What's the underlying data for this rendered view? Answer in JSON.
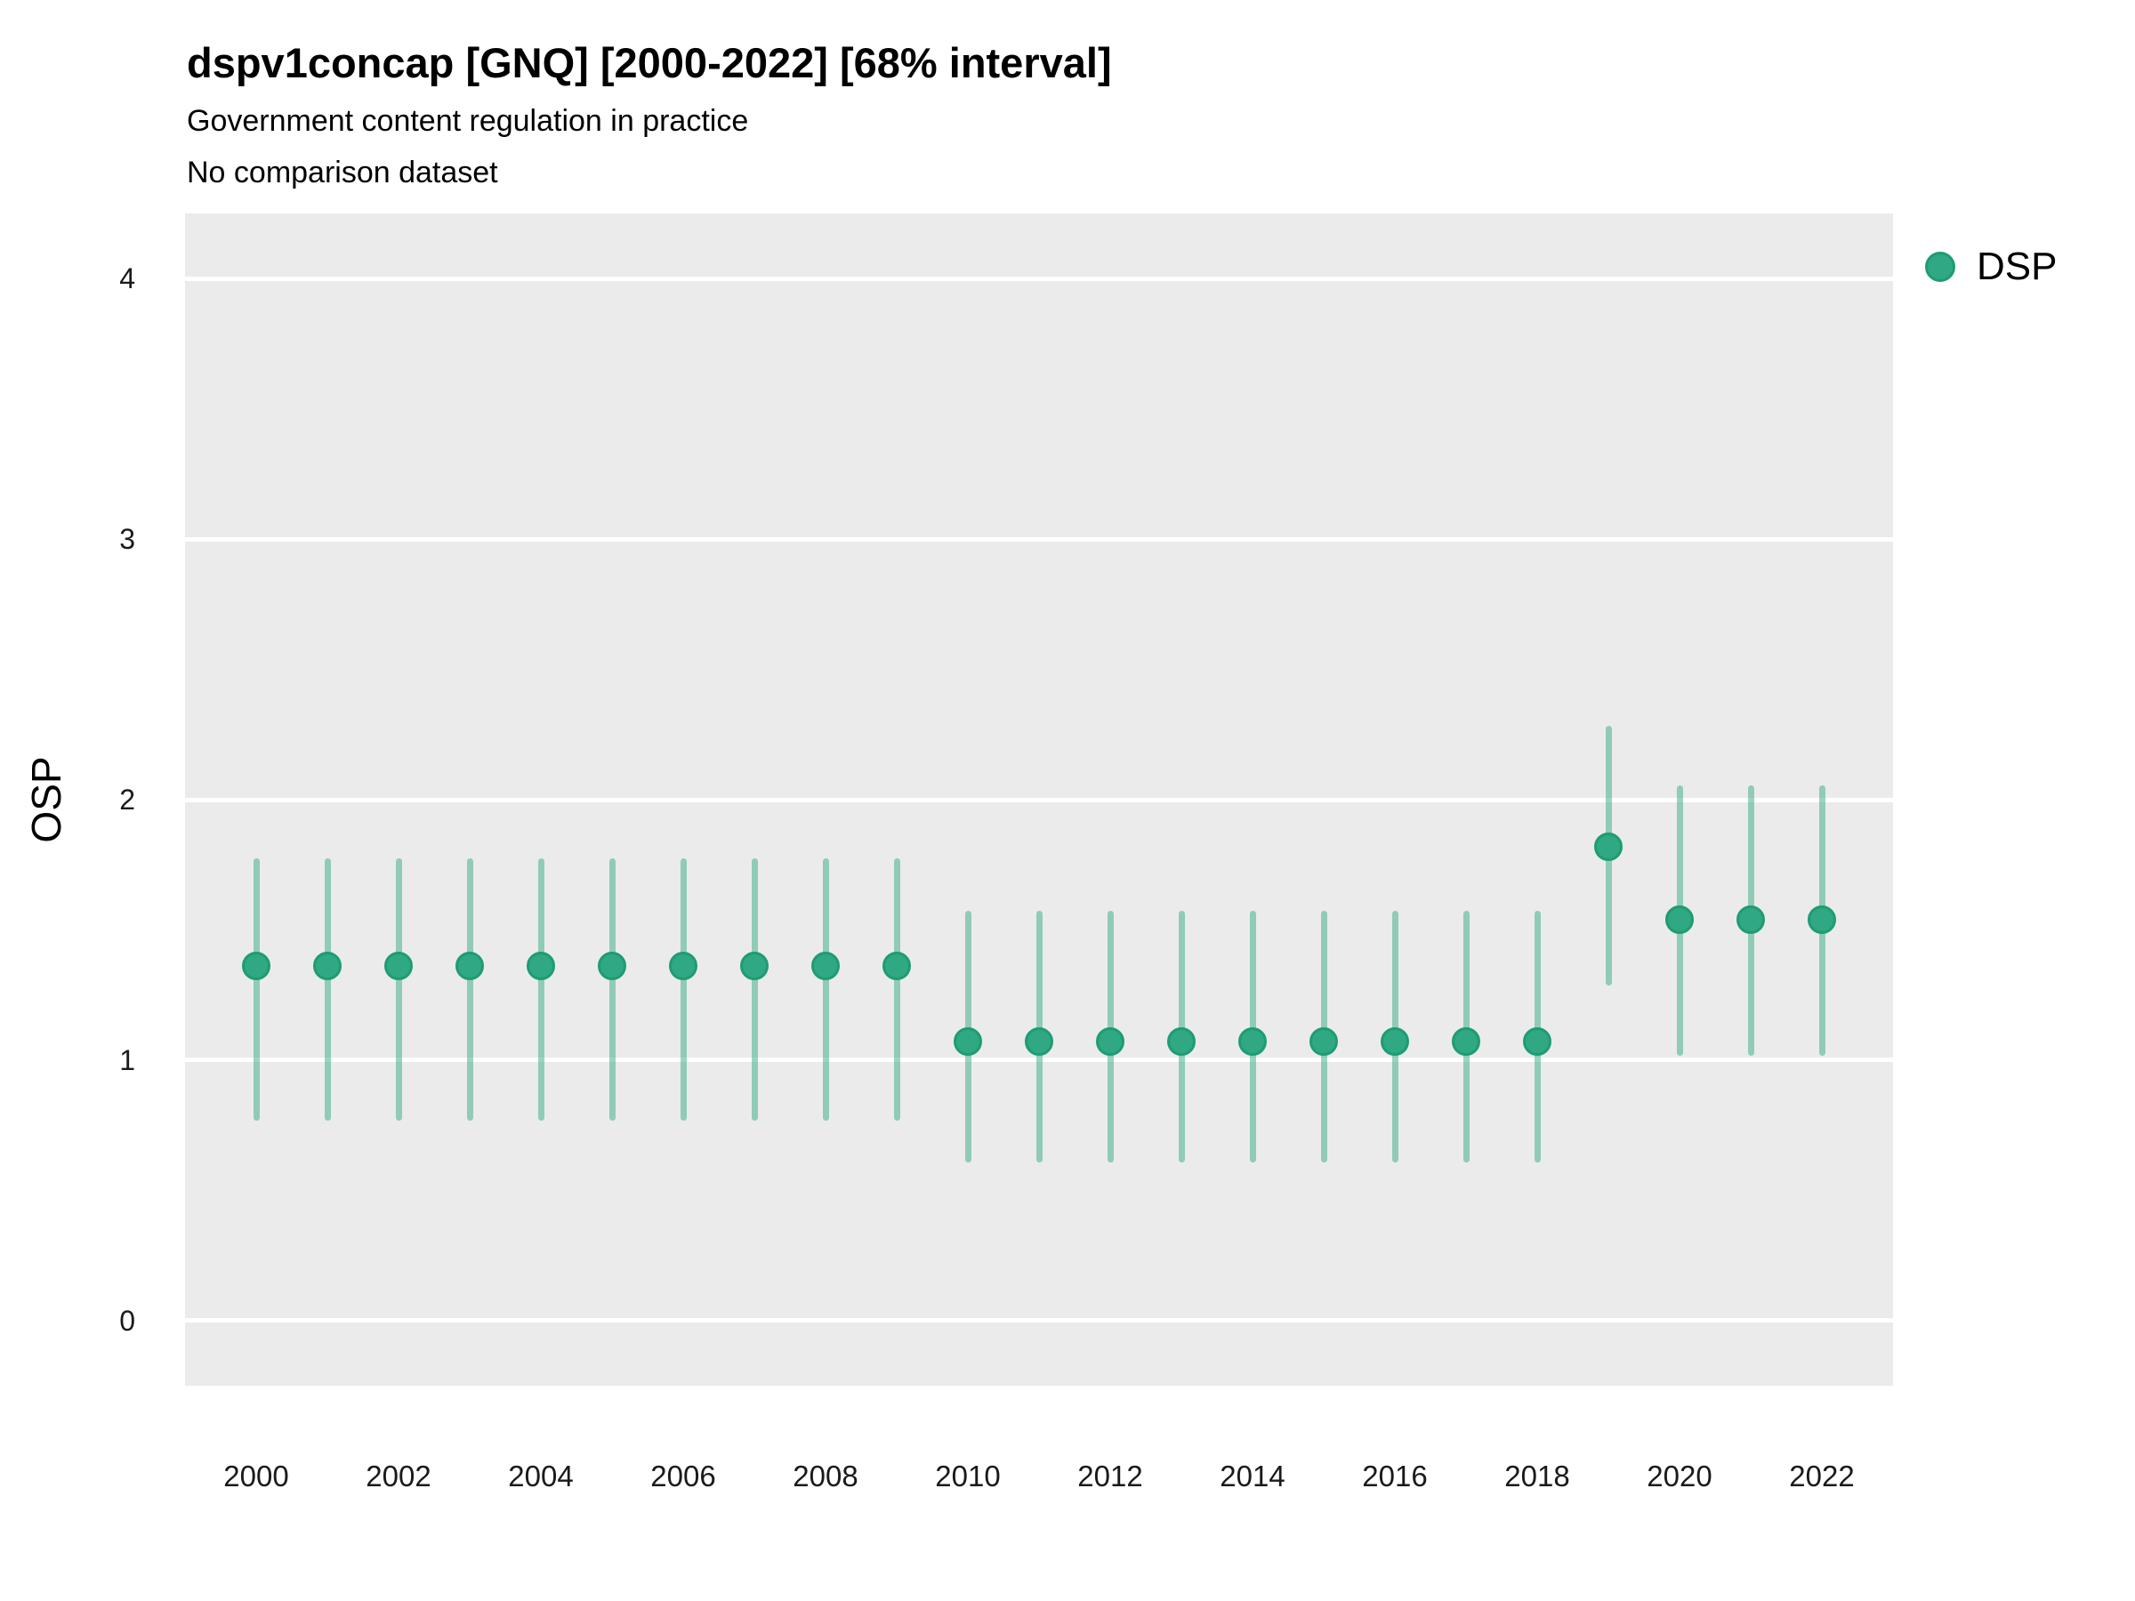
{
  "header": {
    "title": "dspv1concap [GNQ] [2000-2022] [68% interval]",
    "subtitle": "Government content regulation in practice",
    "note": "No comparison dataset"
  },
  "chart_data": {
    "type": "scatter",
    "variant": "point-interval",
    "title": "dspv1concap [GNQ] [2000-2022] [68% interval]",
    "subtitle": "Government content regulation in practice",
    "annotation": "No comparison dataset",
    "xlabel": "",
    "ylabel": "OSP",
    "legend_label": "DSP",
    "legend_position": "right-top",
    "interval_level": "68%",
    "ylim": [
      0,
      4
    ],
    "yticks": [
      0,
      1,
      2,
      3,
      4
    ],
    "xticks": [
      2000,
      2002,
      2004,
      2006,
      2008,
      2010,
      2012,
      2014,
      2016,
      2018,
      2020,
      2022
    ],
    "grid": "horizontal-major-only",
    "panel_background": "#EBEBEB",
    "gridline_color": "#FFFFFF",
    "point_color": "#2FA883",
    "point_stroke_color": "#1E9C73",
    "interval_color": "rgba(43,167,126,0.48)",
    "points": [
      {
        "year": 2000,
        "est": 1.36,
        "lo": 0.78,
        "hi": 1.76
      },
      {
        "year": 2001,
        "est": 1.36,
        "lo": 0.78,
        "hi": 1.76
      },
      {
        "year": 2002,
        "est": 1.36,
        "lo": 0.78,
        "hi": 1.76
      },
      {
        "year": 2003,
        "est": 1.36,
        "lo": 0.78,
        "hi": 1.76
      },
      {
        "year": 2004,
        "est": 1.36,
        "lo": 0.78,
        "hi": 1.76
      },
      {
        "year": 2005,
        "est": 1.36,
        "lo": 0.78,
        "hi": 1.76
      },
      {
        "year": 2006,
        "est": 1.36,
        "lo": 0.78,
        "hi": 1.76
      },
      {
        "year": 2007,
        "est": 1.36,
        "lo": 0.78,
        "hi": 1.76
      },
      {
        "year": 2008,
        "est": 1.36,
        "lo": 0.78,
        "hi": 1.76
      },
      {
        "year": 2009,
        "est": 1.36,
        "lo": 0.78,
        "hi": 1.76
      },
      {
        "year": 2010,
        "est": 1.07,
        "lo": 0.62,
        "hi": 1.56
      },
      {
        "year": 2011,
        "est": 1.07,
        "lo": 0.62,
        "hi": 1.56
      },
      {
        "year": 2012,
        "est": 1.07,
        "lo": 0.62,
        "hi": 1.56
      },
      {
        "year": 2013,
        "est": 1.07,
        "lo": 0.62,
        "hi": 1.56
      },
      {
        "year": 2014,
        "est": 1.07,
        "lo": 0.62,
        "hi": 1.56
      },
      {
        "year": 2015,
        "est": 1.07,
        "lo": 0.62,
        "hi": 1.56
      },
      {
        "year": 2016,
        "est": 1.07,
        "lo": 0.62,
        "hi": 1.56
      },
      {
        "year": 2017,
        "est": 1.07,
        "lo": 0.62,
        "hi": 1.56
      },
      {
        "year": 2018,
        "est": 1.07,
        "lo": 0.62,
        "hi": 1.56
      },
      {
        "year": 2019,
        "est": 1.82,
        "lo": 1.3,
        "hi": 2.27
      },
      {
        "year": 2020,
        "est": 1.54,
        "lo": 1.03,
        "hi": 2.04
      },
      {
        "year": 2021,
        "est": 1.54,
        "lo": 1.03,
        "hi": 2.04
      },
      {
        "year": 2022,
        "est": 1.54,
        "lo": 1.03,
        "hi": 2.04
      }
    ]
  }
}
